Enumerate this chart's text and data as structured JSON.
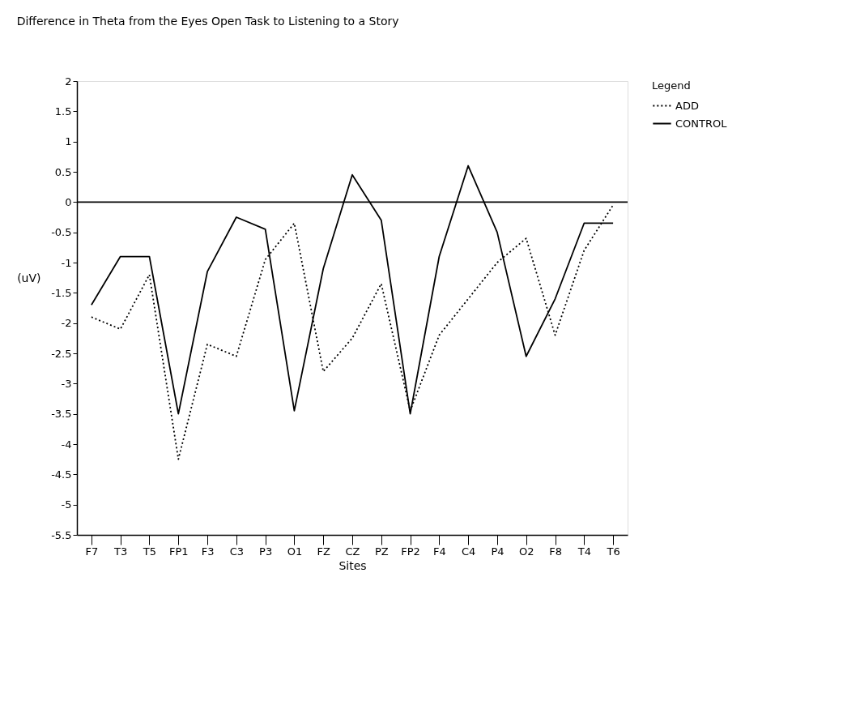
{
  "chart_data": {
    "type": "line",
    "title": "Difference in Theta from the Eyes Open Task to Listening to a Story",
    "xlabel": "Sites",
    "ylabel": "(uV)",
    "legend_title": "Legend",
    "categories": [
      "F7",
      "T3",
      "T5",
      "FP1",
      "F3",
      "C3",
      "P3",
      "O1",
      "FZ",
      "CZ",
      "PZ",
      "FP2",
      "F4",
      "C4",
      "P4",
      "O2",
      "F8",
      "T4",
      "T6"
    ],
    "series": [
      {
        "name": "ADD",
        "color": "#000000",
        "line_style": "dotted",
        "values": [
          -1.9,
          -2.1,
          -1.2,
          -4.25,
          -2.35,
          -2.55,
          -0.95,
          -0.35,
          -2.8,
          -2.25,
          -1.35,
          -3.45,
          -2.2,
          -1.6,
          -1.0,
          -0.6,
          -2.2,
          -0.8,
          -0.05
        ]
      },
      {
        "name": "CONTROL",
        "color": "#000000",
        "line_style": "solid",
        "values": [
          -1.7,
          -0.9,
          -0.9,
          -3.5,
          -1.15,
          -0.25,
          -0.45,
          -3.45,
          -1.1,
          0.45,
          -0.3,
          -3.5,
          -0.9,
          0.6,
          -0.5,
          -2.55,
          -1.6,
          -0.35,
          -0.35
        ]
      }
    ],
    "ylim": [
      -5.5,
      2
    ],
    "yticks": [
      -5.5,
      -5,
      -4.5,
      -4,
      -3.5,
      -3,
      -2.5,
      -2,
      -1.5,
      -1,
      -0.5,
      0,
      0.5,
      1,
      1.5,
      2
    ],
    "ref_lines": [
      {
        "axis": "y",
        "value": 0,
        "color": "#000000"
      }
    ],
    "grid": false,
    "legend": "right",
    "marker": "none"
  }
}
